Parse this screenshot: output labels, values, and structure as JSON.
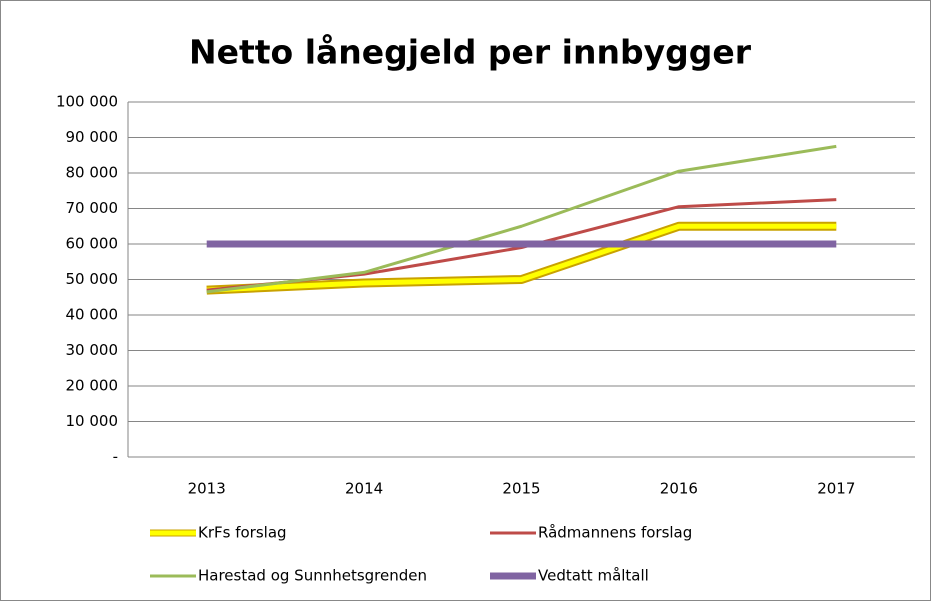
{
  "chart_data": {
    "type": "line",
    "title": "Netto lånegjeld per innbygger",
    "categories": [
      "2013",
      "2014",
      "2015",
      "2016",
      "2017"
    ],
    "series": [
      {
        "name": "KrFs forslag",
        "color": "#ffff00",
        "outline": "#c9a200",
        "values": [
          47000,
          49000,
          50000,
          65000,
          65000
        ]
      },
      {
        "name": "Rådmannens forslag",
        "color": "#be4b48",
        "values": [
          47000,
          51500,
          59000,
          70500,
          72500
        ]
      },
      {
        "name": "Harestad og Sunnhetsgrenden",
        "color": "#9bbb59",
        "values": [
          46500,
          52000,
          65000,
          80500,
          87500
        ]
      },
      {
        "name": "Vedtatt måltall",
        "color": "#8064a2",
        "values": [
          60000,
          60000,
          60000,
          60000,
          60000
        ]
      }
    ],
    "ylim": [
      0,
      100000
    ],
    "yticks": [
      {
        "value": 0,
        "label": "-"
      },
      {
        "value": 10000,
        "label": "10 000"
      },
      {
        "value": 20000,
        "label": "20 000"
      },
      {
        "value": 30000,
        "label": "30 000"
      },
      {
        "value": 40000,
        "label": "40 000"
      },
      {
        "value": 50000,
        "label": "50 000"
      },
      {
        "value": 60000,
        "label": "60 000"
      },
      {
        "value": 70000,
        "label": "70 000"
      },
      {
        "value": 80000,
        "label": "80 000"
      },
      {
        "value": 90000,
        "label": "90 000"
      },
      {
        "value": 100000,
        "label": "100 000"
      }
    ],
    "grid": true
  }
}
